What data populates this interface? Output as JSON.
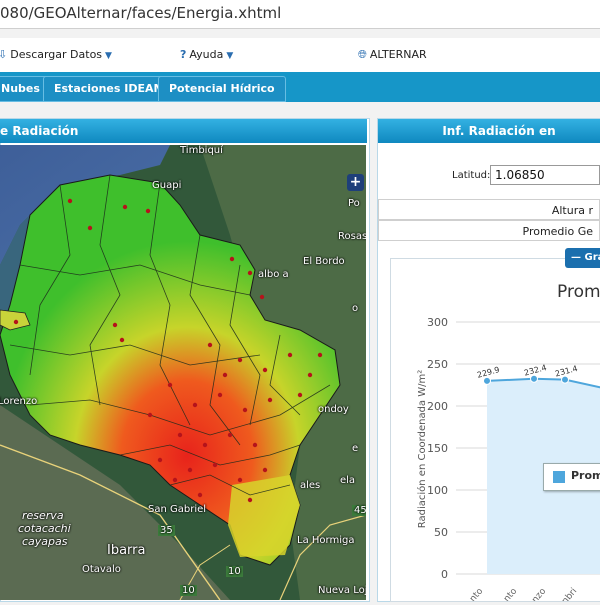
{
  "browser": {
    "url": "080/GEOAlternar/faces/Energia.xhtml"
  },
  "menu": {
    "descargar": {
      "label": "Descargar Datos",
      "icon": "download-icon"
    },
    "ayuda": {
      "label": "Ayuda",
      "icon": "help-icon"
    },
    "alternar": {
      "label": "ALTERNAR",
      "icon": "globe-icon"
    }
  },
  "tabs": [
    {
      "label": "Nubes"
    },
    {
      "label": "Estaciones IDEAM"
    },
    {
      "label": "Potencial Hídrico"
    }
  ],
  "left_panel": {
    "title": "e Radiación"
  },
  "map": {
    "labels": [
      "Timbiquí",
      "Guapi",
      "Po",
      "Rosas",
      "El Bordo",
      "albo a",
      "Lorenzo",
      "ondoy",
      "reserva",
      "cotacachi",
      "cayapas",
      "San Gabriel",
      "Ibarra",
      "Otavalo",
      "La Hormiga",
      "Nueva Loja",
      "35",
      "10",
      "10",
      "45",
      "ales",
      "e",
      "o",
      "ela"
    ]
  },
  "right_panel": {
    "title": "Inf. Radiación en",
    "latitude_label": "Latitud:",
    "latitude_value": "1.06850",
    "rows": [
      "Altura r",
      "Promedio Ge"
    ],
    "graph_button": "Gra"
  },
  "colors": {
    "tab_bar": "#1696c8",
    "panel_header": "#1b9fd6",
    "series": "#4ea6dc"
  },
  "chart_data": {
    "type": "area",
    "title": "Prome",
    "ylabel": "Radiación en Coordenada W/m²",
    "ylim": [
      0,
      300
    ],
    "yticks": [
      0,
      50,
      100,
      150,
      200,
      250,
      300
    ],
    "categories": [
      "nto",
      "nto",
      "nzo",
      "nbri"
    ],
    "series": [
      {
        "name": "Prom",
        "values": [
          229.9,
          232.4,
          231.4,
          222
        ]
      }
    ],
    "data_labels": [
      "229.9",
      "232.4",
      "231.4",
      ""
    ]
  }
}
